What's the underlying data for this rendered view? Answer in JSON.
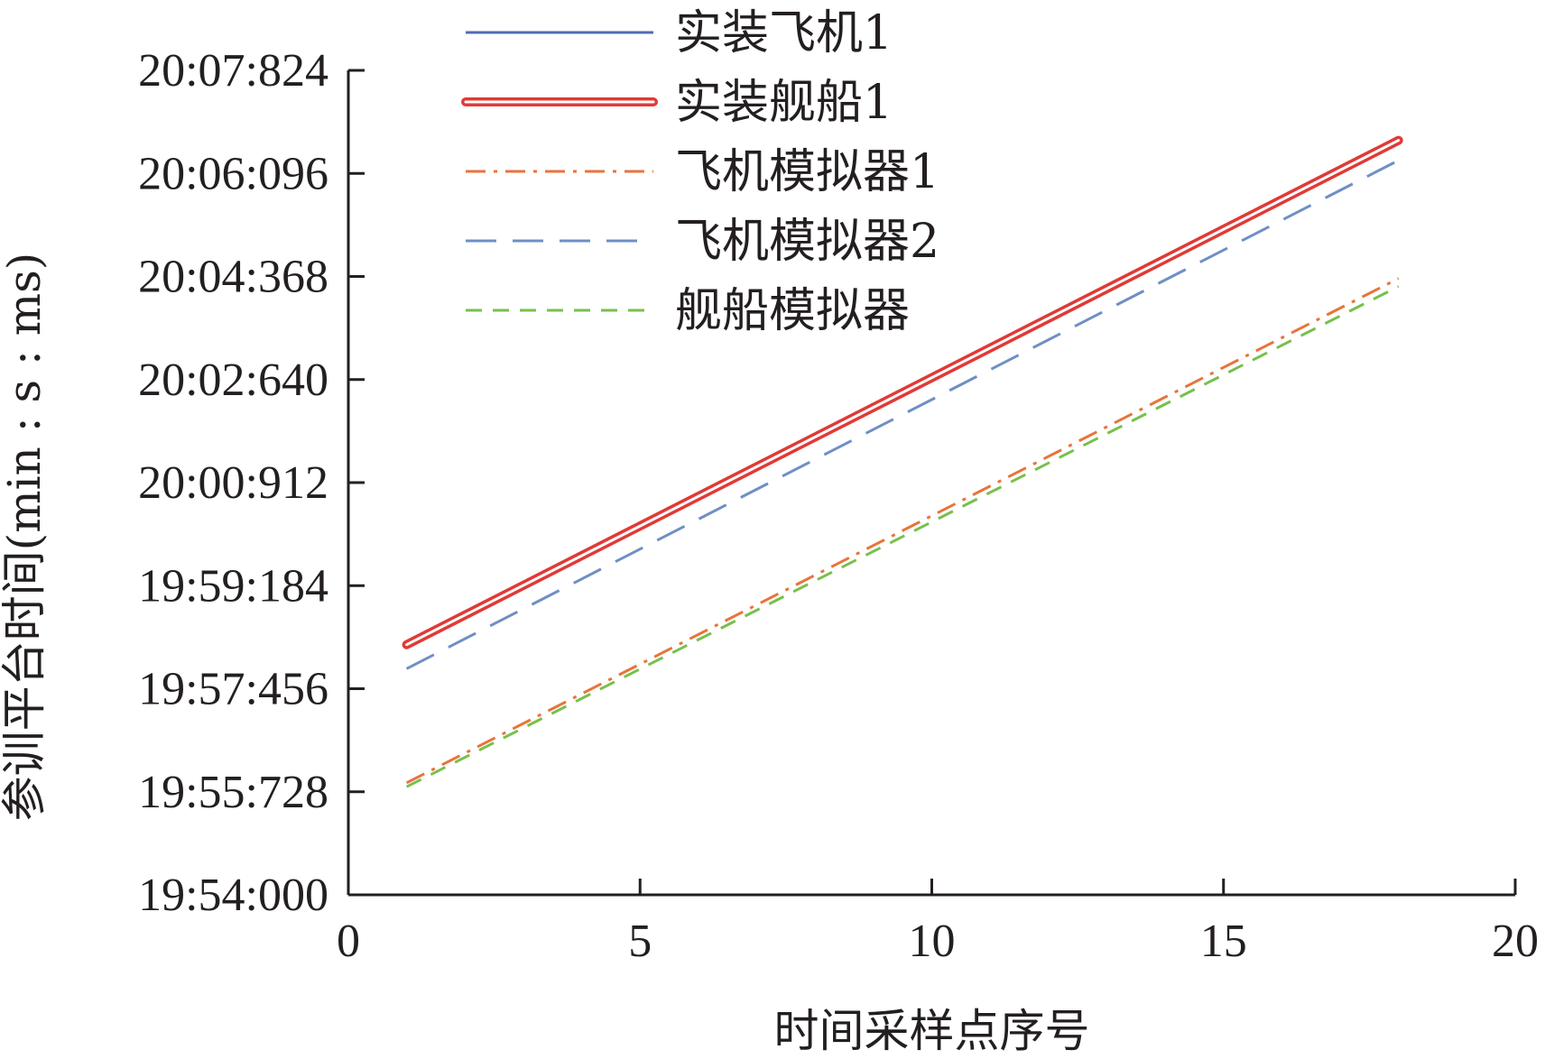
{
  "chart_data": {
    "type": "line",
    "xlabel": "时间采样点序号",
    "ylabel": "参训平台时间(min : s : ms)",
    "xlim": [
      0,
      20
    ],
    "ylim": [
      0,
      824
    ],
    "x_ticks": [
      0,
      5,
      10,
      15,
      20
    ],
    "x_tick_labels": [
      "0",
      "5",
      "10",
      "15",
      "20"
    ],
    "y_ticks": [
      0,
      103,
      206,
      309,
      412,
      515,
      618,
      721,
      824
    ],
    "y_tick_labels": [
      "19:54:000",
      "19:55:728",
      "19:57:456",
      "19:59:184",
      "20:00:912",
      "20:02:640",
      "20:04:368",
      "20:06:096",
      "20:07:824"
    ],
    "grid": false,
    "legend_position": "top-center",
    "x": [
      1,
      18
    ],
    "series": [
      {
        "name": "实装飞机1",
        "color": "#4f6db2",
        "style": "solid",
        "values": [
          250,
          754
        ]
      },
      {
        "name": "实装舰船1",
        "color": "#e03a36",
        "style": "double",
        "values": [
          250,
          754
        ]
      },
      {
        "name": "飞机模拟器1",
        "color": "#e8743b",
        "style": "dash-dot",
        "values": [
          112,
          616
        ]
      },
      {
        "name": "飞机模拟器2",
        "color": "#6f8fc4",
        "style": "long-dash",
        "values": [
          226,
          734
        ]
      },
      {
        "name": "舰船模拟器",
        "color": "#77c04c",
        "style": "dash",
        "values": [
          108,
          608
        ]
      }
    ]
  }
}
